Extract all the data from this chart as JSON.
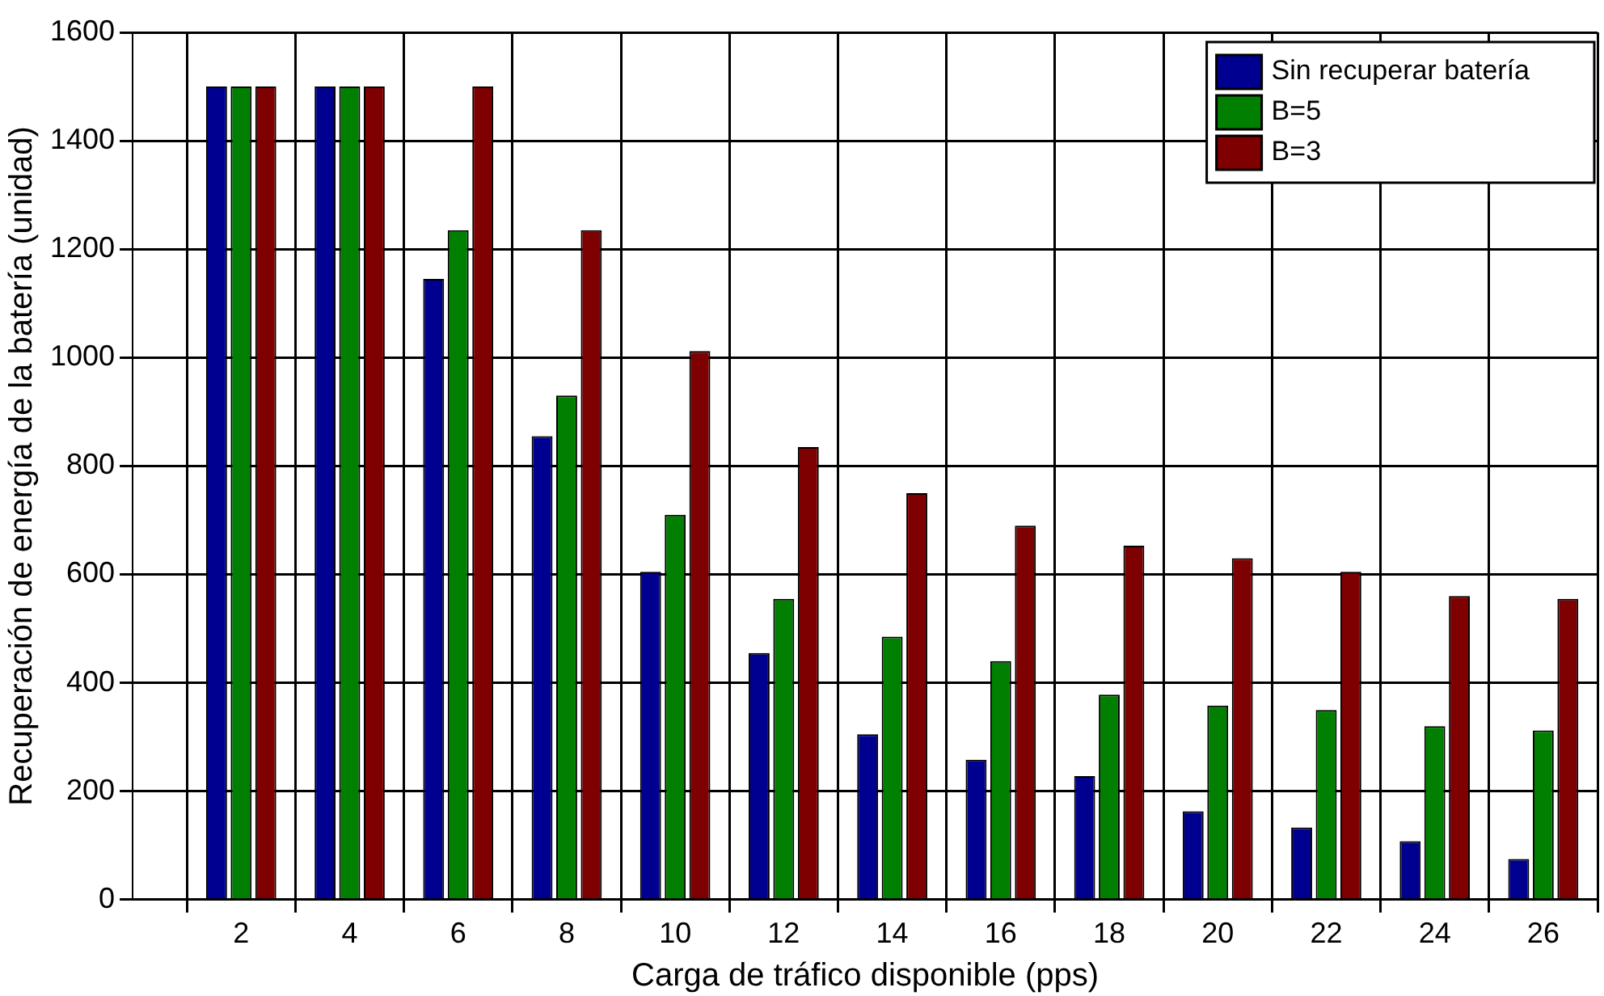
{
  "chart_data": {
    "type": "bar",
    "xlabel": "Carga de tráfico disponible (pps)",
    "ylabel": "Recuperación de energía de la batería (unidad)",
    "x": [
      2,
      4,
      6,
      8,
      10,
      12,
      14,
      16,
      18,
      20,
      22,
      24,
      26
    ],
    "series": [
      {
        "name": "Sin recuperar batería",
        "color": "#000090",
        "values": [
          1500,
          1500,
          1145,
          855,
          605,
          455,
          305,
          258,
          228,
          163,
          133,
          108,
          75
        ]
      },
      {
        "name": "B=5",
        "color": "#007f00",
        "values": [
          1500,
          1500,
          1235,
          930,
          710,
          555,
          485,
          440,
          378,
          358,
          350,
          320,
          312
        ]
      },
      {
        "name": "B=3",
        "color": "#7f0000",
        "values": [
          1500,
          1500,
          1500,
          1235,
          1012,
          835,
          750,
          690,
          653,
          630,
          605,
          560,
          555
        ]
      }
    ],
    "xlim": [
      0,
      27
    ],
    "xticks": [
      2,
      4,
      6,
      8,
      10,
      12,
      14,
      16,
      18,
      20,
      22,
      24,
      26
    ],
    "ylim": [
      0,
      1600
    ],
    "yticks": [
      0,
      200,
      400,
      600,
      800,
      1000,
      1200,
      1400,
      1600
    ],
    "grid": true,
    "legend": "top right"
  }
}
